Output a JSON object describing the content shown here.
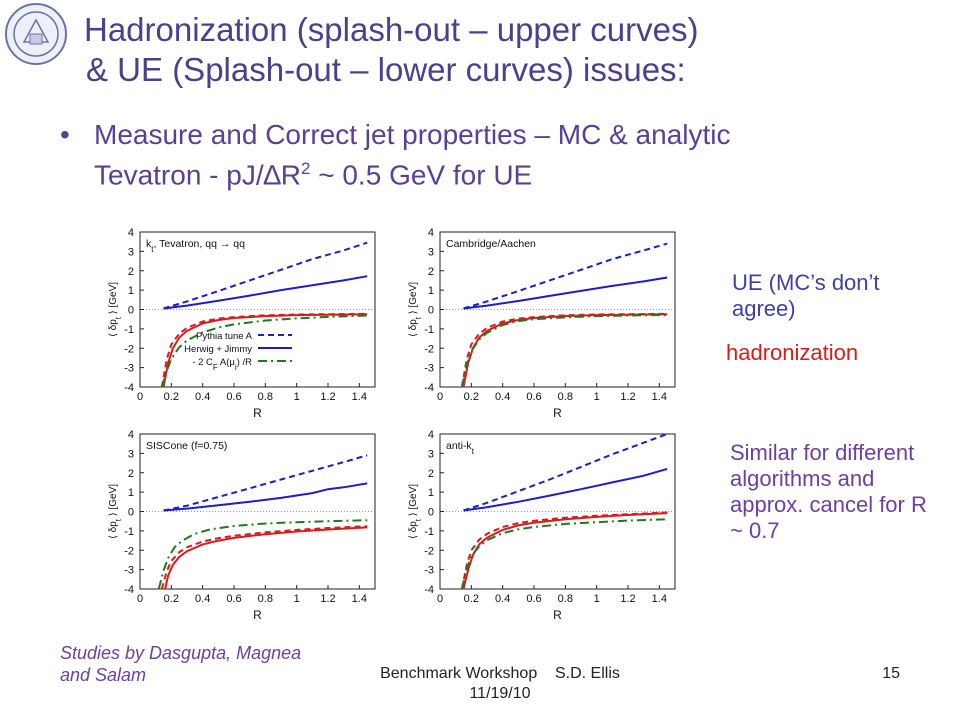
{
  "title": {
    "line1": "Hadronization (splash-out – upper curves)",
    "line2": "& UE (Splash-out – lower curves) issues:"
  },
  "bullet": {
    "symbol": "•",
    "line1": "Measure and Correct jet properties – MC & analytic",
    "line2_pre": "Tevatron - pJ/∆R",
    "line2_sup": "2",
    "line2_post": " ~ 0.5 GeV for UE"
  },
  "side": {
    "ue": "UE (MC’s don’t agree)",
    "hadronization": "hadronization",
    "similar": "Similar for different algorithms and approx. cancel for R ~ 0.7"
  },
  "studies": "Studies by Dasgupta, Magnea and Salam",
  "footer": {
    "center_line1": "Benchmark Workshop    S.D. Ellis",
    "center_line2": "11/19/10",
    "page": "15"
  },
  "colors": {
    "title": "#4b3f8e",
    "pythia": "#1b1fc4",
    "herwig": "#1b1fc4",
    "analytic": "#1f7a1f",
    "hadronization": "#d81c1c"
  },
  "chart_data": [
    {
      "type": "line",
      "panel_label": "k",
      "panel_label_sub": "t",
      "panel_label_rest": ", Tevatron, qq → qq",
      "xlabel": "R",
      "ylabel": "⟨ δp",
      "ylabel_sub": "t",
      "ylabel_rest": " ⟩ [GeV]",
      "xlim": [
        0,
        1.5
      ],
      "ylim": [
        -4,
        4
      ],
      "xticks": [
        "0",
        "0.2",
        "0.4",
        "0.6",
        "0.8",
        "1",
        "1.2",
        "1.4"
      ],
      "yticks": [
        "-4",
        "-3",
        "-2",
        "-1",
        "0",
        "1",
        "2",
        "3",
        "4"
      ],
      "legend": {
        "placement": "bottom-right",
        "entries": [
          {
            "label": "Pythia tune A",
            "style": "dashed",
            "color": "#1b1fc4"
          },
          {
            "label": "Herwig + Jimmy",
            "style": "solid",
            "color": "#1b1fc4"
          },
          {
            "label": "- 2 C",
            "label_sub": "F",
            "label_rest": " A(μ",
            "label_sub2": "i",
            "label_rest2": ") /R",
            "style": "dashdot",
            "color": "#1f7a1f"
          }
        ]
      },
      "series": [
        {
          "name": "Pythia tune A",
          "group": "ue",
          "style": "dashed",
          "color": "#1b1fc4",
          "x": [
            0.15,
            0.3,
            0.5,
            0.7,
            0.9,
            1.1,
            1.3,
            1.45
          ],
          "y": [
            0.05,
            0.42,
            0.95,
            1.5,
            2.05,
            2.6,
            3.05,
            3.45
          ]
        },
        {
          "name": "Herwig + Jimmy",
          "group": "ue",
          "style": "solid",
          "color": "#1b1fc4",
          "x": [
            0.15,
            0.3,
            0.5,
            0.7,
            0.9,
            1.1,
            1.3,
            1.45
          ],
          "y": [
            0.05,
            0.2,
            0.45,
            0.72,
            1.0,
            1.25,
            1.5,
            1.72
          ]
        },
        {
          "group": "had",
          "style": "dashed",
          "color": "#d81c1c",
          "x": [
            0.14,
            0.17,
            0.2,
            0.25,
            0.3,
            0.4,
            0.5,
            0.6,
            0.8,
            1.0,
            1.2,
            1.45
          ],
          "y": [
            -4.0,
            -2.6,
            -1.8,
            -1.25,
            -0.95,
            -0.62,
            -0.47,
            -0.39,
            -0.3,
            -0.26,
            -0.24,
            -0.22
          ]
        },
        {
          "group": "had",
          "style": "solid",
          "color": "#d81c1c",
          "x": [
            0.15,
            0.18,
            0.21,
            0.25,
            0.3,
            0.4,
            0.5,
            0.6,
            0.8,
            1.0,
            1.2,
            1.45
          ],
          "y": [
            -4.0,
            -2.75,
            -2.0,
            -1.45,
            -1.1,
            -0.72,
            -0.54,
            -0.44,
            -0.34,
            -0.29,
            -0.27,
            -0.25
          ]
        },
        {
          "group": "had",
          "style": "dashdot",
          "color": "#1f7a1f",
          "x": [
            0.14,
            0.17,
            0.2,
            0.25,
            0.3,
            0.4,
            0.5,
            0.6,
            0.8,
            1.0,
            1.2,
            1.45
          ],
          "y": [
            -4.0,
            -3.2,
            -2.55,
            -1.95,
            -1.6,
            -1.18,
            -0.93,
            -0.77,
            -0.57,
            -0.46,
            -0.38,
            -0.31
          ]
        }
      ]
    },
    {
      "type": "line",
      "panel_label": "Cambridge/Aachen",
      "xlabel": "R",
      "ylabel": "⟨ δp",
      "ylabel_sub": "t",
      "ylabel_rest": " ⟩ [GeV]",
      "xlim": [
        0,
        1.5
      ],
      "ylim": [
        -4,
        4
      ],
      "xticks": [
        "0",
        "0.2",
        "0.4",
        "0.6",
        "0.8",
        "1",
        "1.2",
        "1.4"
      ],
      "yticks": [
        "-4",
        "-3",
        "-2",
        "-1",
        "0",
        "1",
        "2",
        "3",
        "4"
      ],
      "series": [
        {
          "group": "ue",
          "style": "dashed",
          "color": "#1b1fc4",
          "x": [
            0.15,
            0.3,
            0.5,
            0.7,
            0.9,
            1.1,
            1.3,
            1.45
          ],
          "y": [
            0.05,
            0.42,
            0.95,
            1.5,
            2.05,
            2.6,
            3.05,
            3.4
          ]
        },
        {
          "group": "ue",
          "style": "solid",
          "color": "#1b1fc4",
          "x": [
            0.15,
            0.3,
            0.5,
            0.7,
            0.9,
            1.1,
            1.3,
            1.45
          ],
          "y": [
            0.05,
            0.2,
            0.44,
            0.7,
            0.96,
            1.22,
            1.45,
            1.65
          ]
        },
        {
          "group": "had",
          "style": "dashed",
          "color": "#d81c1c",
          "x": [
            0.14,
            0.17,
            0.2,
            0.25,
            0.3,
            0.4,
            0.5,
            0.6,
            0.8,
            1.0,
            1.2,
            1.45
          ],
          "y": [
            -4.0,
            -2.6,
            -1.8,
            -1.25,
            -0.95,
            -0.62,
            -0.47,
            -0.39,
            -0.3,
            -0.26,
            -0.24,
            -0.22
          ]
        },
        {
          "group": "had",
          "style": "solid",
          "color": "#d81c1c",
          "x": [
            0.15,
            0.18,
            0.21,
            0.25,
            0.3,
            0.4,
            0.5,
            0.6,
            0.8,
            1.0,
            1.2,
            1.45
          ],
          "y": [
            -4.0,
            -2.75,
            -2.0,
            -1.45,
            -1.1,
            -0.72,
            -0.54,
            -0.44,
            -0.34,
            -0.29,
            -0.27,
            -0.25
          ]
        },
        {
          "group": "had",
          "style": "dashdot",
          "color": "#1f7a1f",
          "x": [
            0.14,
            0.17,
            0.2,
            0.25,
            0.3,
            0.4,
            0.5,
            0.6,
            0.8,
            1.0,
            1.2,
            1.45
          ],
          "y": [
            -4.0,
            -2.9,
            -2.15,
            -1.55,
            -1.2,
            -0.8,
            -0.6,
            -0.5,
            -0.4,
            -0.34,
            -0.31,
            -0.28
          ]
        }
      ]
    },
    {
      "type": "line",
      "panel_label": "SISCone (f=0.75)",
      "xlabel": "R",
      "ylabel": "⟨ δp",
      "ylabel_sub": "t",
      "ylabel_rest": " ⟩ [GeV]",
      "xlim": [
        0,
        1.5
      ],
      "ylim": [
        -4,
        4
      ],
      "xticks": [
        "0",
        "0.2",
        "0.4",
        "0.6",
        "0.8",
        "1",
        "1.2",
        "1.4"
      ],
      "yticks": [
        "-4",
        "-3",
        "-2",
        "-1",
        "0",
        "1",
        "2",
        "3",
        "4"
      ],
      "series": [
        {
          "group": "ue",
          "style": "dashed",
          "color": "#1b1fc4",
          "x": [
            0.15,
            0.3,
            0.5,
            0.7,
            0.9,
            1.1,
            1.3,
            1.45
          ],
          "y": [
            0.05,
            0.3,
            0.75,
            1.2,
            1.65,
            2.1,
            2.55,
            2.9
          ]
        },
        {
          "group": "ue",
          "style": "solid",
          "color": "#1b1fc4",
          "x": [
            0.15,
            0.3,
            0.5,
            0.7,
            0.9,
            1.1,
            1.2,
            1.3,
            1.45
          ],
          "y": [
            0.05,
            0.15,
            0.32,
            0.5,
            0.7,
            0.95,
            1.15,
            1.25,
            1.45
          ]
        },
        {
          "group": "had",
          "style": "dashed",
          "color": "#d81c1c",
          "x": [
            0.14,
            0.17,
            0.2,
            0.25,
            0.3,
            0.4,
            0.5,
            0.6,
            0.8,
            1.0,
            1.2,
            1.45
          ],
          "y": [
            -4.0,
            -3.1,
            -2.55,
            -2.1,
            -1.85,
            -1.55,
            -1.38,
            -1.25,
            -1.08,
            -0.95,
            -0.85,
            -0.76
          ]
        },
        {
          "group": "had",
          "style": "solid",
          "color": "#d81c1c",
          "x": [
            0.16,
            0.18,
            0.21,
            0.25,
            0.3,
            0.4,
            0.5,
            0.6,
            0.8,
            1.0,
            1.2,
            1.45
          ],
          "y": [
            -4.0,
            -3.3,
            -2.75,
            -2.35,
            -2.05,
            -1.7,
            -1.5,
            -1.36,
            -1.17,
            -1.03,
            -0.93,
            -0.82
          ]
        },
        {
          "group": "had",
          "style": "dashdot",
          "color": "#1f7a1f",
          "x": [
            0.12,
            0.15,
            0.18,
            0.22,
            0.27,
            0.35,
            0.45,
            0.6,
            0.8,
            1.0,
            1.2,
            1.45
          ],
          "y": [
            -4.0,
            -3.05,
            -2.4,
            -1.85,
            -1.5,
            -1.15,
            -0.92,
            -0.75,
            -0.62,
            -0.55,
            -0.5,
            -0.45
          ]
        }
      ]
    },
    {
      "type": "line",
      "panel_label": "anti-k",
      "panel_label_sub": "t",
      "xlabel": "R",
      "ylabel": "⟨ δp",
      "ylabel_sub": "t",
      "ylabel_rest": " ⟩ [GeV]",
      "xlim": [
        0,
        1.5
      ],
      "ylim": [
        -4,
        4
      ],
      "xticks": [
        "0",
        "0.2",
        "0.4",
        "0.6",
        "0.8",
        "1",
        "1.2",
        "1.4"
      ],
      "yticks": [
        "-4",
        "-3",
        "-2",
        "-1",
        "0",
        "1",
        "2",
        "3",
        "4"
      ],
      "series": [
        {
          "group": "ue",
          "style": "dashed",
          "color": "#1b1fc4",
          "x": [
            0.15,
            0.3,
            0.5,
            0.7,
            0.9,
            1.1,
            1.3,
            1.45
          ],
          "y": [
            0.05,
            0.45,
            1.05,
            1.65,
            2.3,
            2.95,
            3.55,
            4.0
          ]
        },
        {
          "group": "ue",
          "style": "solid",
          "color": "#1b1fc4",
          "x": [
            0.15,
            0.3,
            0.5,
            0.7,
            0.9,
            1.1,
            1.3,
            1.45
          ],
          "y": [
            0.05,
            0.22,
            0.5,
            0.82,
            1.15,
            1.5,
            1.85,
            2.2
          ]
        },
        {
          "group": "had",
          "style": "dashed",
          "color": "#d81c1c",
          "x": [
            0.14,
            0.17,
            0.2,
            0.25,
            0.3,
            0.4,
            0.5,
            0.6,
            0.8,
            1.0,
            1.2,
            1.45
          ],
          "y": [
            -4.0,
            -2.8,
            -2.0,
            -1.45,
            -1.15,
            -0.8,
            -0.6,
            -0.48,
            -0.32,
            -0.22,
            -0.14,
            -0.05
          ]
        },
        {
          "group": "had",
          "style": "solid",
          "color": "#d81c1c",
          "x": [
            0.15,
            0.18,
            0.21,
            0.25,
            0.3,
            0.4,
            0.5,
            0.6,
            0.8,
            1.0,
            1.2,
            1.45
          ],
          "y": [
            -4.0,
            -3.0,
            -2.25,
            -1.7,
            -1.35,
            -0.95,
            -0.72,
            -0.58,
            -0.4,
            -0.28,
            -0.18,
            -0.08
          ]
        },
        {
          "group": "had",
          "style": "dashdot",
          "color": "#1f7a1f",
          "x": [
            0.14,
            0.17,
            0.2,
            0.25,
            0.3,
            0.4,
            0.5,
            0.6,
            0.8,
            1.0,
            1.2,
            1.45
          ],
          "y": [
            -4.0,
            -3.0,
            -2.3,
            -1.8,
            -1.48,
            -1.12,
            -0.92,
            -0.8,
            -0.64,
            -0.55,
            -0.47,
            -0.4
          ]
        }
      ]
    }
  ]
}
